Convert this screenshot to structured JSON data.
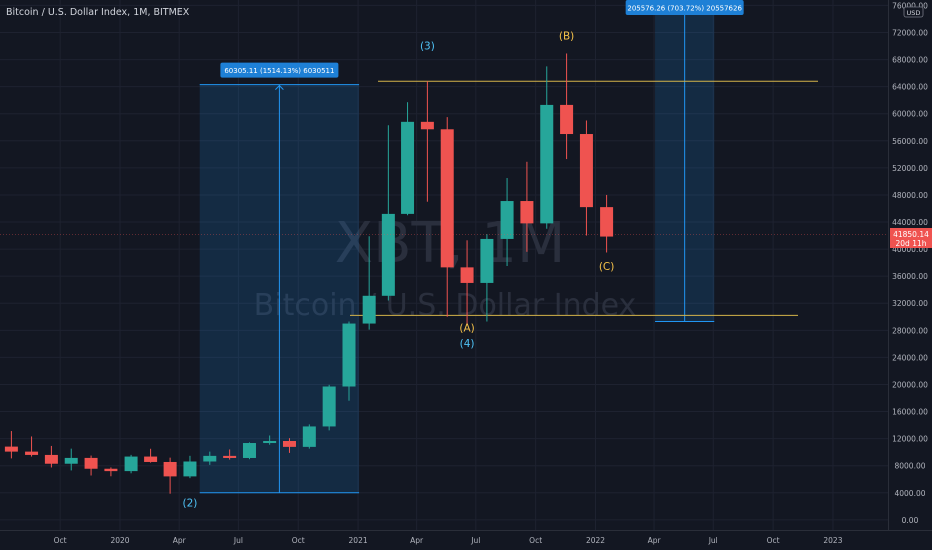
{
  "header": {
    "symbol_title": "Bitcoin / U.S. Dollar Index, 1M, BITMEX"
  },
  "watermark": {
    "ticker": "XBT, 1M",
    "description": "Bitcoin / U.S. Dollar Index"
  },
  "currency_badge": "USD",
  "price_axis": {
    "ticks": [
      "76000.00",
      "72000.00",
      "68000.00",
      "64000.00",
      "60000.00",
      "56000.00",
      "52000.00",
      "48000.00",
      "44000.00",
      "40000.00",
      "36000.00",
      "32000.00",
      "28000.00",
      "24000.00",
      "20000.00",
      "16000.00",
      "12000.00",
      "8000.00",
      "4000.00",
      "0.00"
    ],
    "current_price": "41850.14",
    "countdown": "20d 11h"
  },
  "time_axis": {
    "ticks": [
      "Oct",
      "2020",
      "Apr",
      "Jul",
      "Oct",
      "2021",
      "Apr",
      "Jul",
      "Oct",
      "2022",
      "Apr",
      "Jul",
      "Oct",
      "2023"
    ]
  },
  "measure_boxes": [
    {
      "label": "60305.11 (1514.13%) 6030511"
    },
    {
      "label": "205576.26 (703.72%) 20557626"
    }
  ],
  "wave_labels": [
    {
      "text": "(2)"
    },
    {
      "text": "(3)"
    },
    {
      "text": "(4)"
    },
    {
      "text": "(A)"
    },
    {
      "text": "(B)"
    },
    {
      "text": "(C)"
    }
  ],
  "colors": {
    "background": "#131722",
    "up": "#26a69a",
    "down": "#ef5350",
    "measure": "#2196f3",
    "wave_blue": "#4fc3f7",
    "wave_orange": "#f5c24a",
    "hline": "#d4b44a"
  },
  "chart_data": {
    "type": "candlestick",
    "timeframe": "1M",
    "series": [
      {
        "date": "2019-06",
        "open": 8550,
        "high": 13880,
        "low": 7450,
        "close": 10820
      },
      {
        "date": "2019-07",
        "open": 10820,
        "high": 13120,
        "low": 9080,
        "close": 10080
      },
      {
        "date": "2019-08",
        "open": 10080,
        "high": 12320,
        "low": 9350,
        "close": 9590
      },
      {
        "date": "2019-09",
        "open": 9590,
        "high": 10920,
        "low": 7740,
        "close": 8290
      },
      {
        "date": "2019-10",
        "open": 8290,
        "high": 10520,
        "low": 7300,
        "close": 9150
      },
      {
        "date": "2019-11",
        "open": 9150,
        "high": 9500,
        "low": 6550,
        "close": 7550
      },
      {
        "date": "2019-12",
        "open": 7550,
        "high": 7750,
        "low": 6440,
        "close": 7200
      },
      {
        "date": "2020-01",
        "open": 7200,
        "high": 9600,
        "low": 6880,
        "close": 9350
      },
      {
        "date": "2020-02",
        "open": 9350,
        "high": 10500,
        "low": 8450,
        "close": 8550
      },
      {
        "date": "2020-03",
        "open": 8550,
        "high": 9190,
        "low": 3860,
        "close": 6420
      },
      {
        "date": "2020-04",
        "open": 6420,
        "high": 9460,
        "low": 6160,
        "close": 8620
      },
      {
        "date": "2020-05",
        "open": 8620,
        "high": 10080,
        "low": 8120,
        "close": 9450
      },
      {
        "date": "2020-06",
        "open": 9450,
        "high": 10400,
        "low": 8900,
        "close": 9140
      },
      {
        "date": "2020-07",
        "open": 9140,
        "high": 11450,
        "low": 8960,
        "close": 11350
      },
      {
        "date": "2020-08",
        "open": 11350,
        "high": 12460,
        "low": 11100,
        "close": 11650
      },
      {
        "date": "2020-09",
        "open": 11650,
        "high": 12070,
        "low": 9890,
        "close": 10780
      },
      {
        "date": "2020-10",
        "open": 10780,
        "high": 14100,
        "low": 10520,
        "close": 13800
      },
      {
        "date": "2020-11",
        "open": 13800,
        "high": 19950,
        "low": 13220,
        "close": 19700
      },
      {
        "date": "2020-12",
        "open": 19700,
        "high": 29300,
        "low": 17600,
        "close": 29000
      },
      {
        "date": "2021-01",
        "open": 29000,
        "high": 41900,
        "low": 28100,
        "close": 33100
      },
      {
        "date": "2021-02",
        "open": 33100,
        "high": 58300,
        "low": 32400,
        "close": 45200
      },
      {
        "date": "2021-03",
        "open": 45200,
        "high": 61700,
        "low": 45000,
        "close": 58800
      },
      {
        "date": "2021-04",
        "open": 58800,
        "high": 64800,
        "low": 47000,
        "close": 57700
      },
      {
        "date": "2021-05",
        "open": 57700,
        "high": 59500,
        "low": 30000,
        "close": 37300
      },
      {
        "date": "2021-06",
        "open": 37300,
        "high": 41300,
        "low": 28800,
        "close": 35000
      },
      {
        "date": "2021-07",
        "open": 35000,
        "high": 42200,
        "low": 29300,
        "close": 41500
      },
      {
        "date": "2021-08",
        "open": 41500,
        "high": 50500,
        "low": 37500,
        "close": 47100
      },
      {
        "date": "2021-09",
        "open": 47100,
        "high": 52900,
        "low": 39600,
        "close": 43800
      },
      {
        "date": "2021-10",
        "open": 43800,
        "high": 67000,
        "low": 43000,
        "close": 61300
      },
      {
        "date": "2021-11",
        "open": 61300,
        "high": 68900,
        "low": 53300,
        "close": 57000
      },
      {
        "date": "2021-12",
        "open": 57000,
        "high": 59000,
        "low": 42000,
        "close": 46200
      },
      {
        "date": "2022-01",
        "open": 46200,
        "high": 48000,
        "low": 39500,
        "close": 41850
      }
    ],
    "yrange": [
      -1500,
      76800
    ],
    "price_axis_position": "right",
    "horizontal_lines": [
      64800,
      30200
    ],
    "measure_ranges": [
      {
        "start": "2020-05",
        "end": "2020-12",
        "from": 4000,
        "to": 64300,
        "change": "60305.11 (1514.13%)"
      },
      {
        "start": "2022-04",
        "end": "2022-06",
        "from": 29300,
        "to": 234800,
        "change": "205576.26 (703.72%)"
      }
    ],
    "annotations": [
      {
        "text": "(2)",
        "date": "2020-04",
        "price": 2000
      },
      {
        "text": "(3)",
        "date": "2021-04",
        "price": 69500
      },
      {
        "text": "(4)",
        "date": "2021-06",
        "price": 25500
      },
      {
        "text": "(A)",
        "date": "2021-06",
        "price": 27800
      },
      {
        "text": "(B)",
        "date": "2021-11",
        "price": 71000
      },
      {
        "text": "(C)",
        "date": "2022-01",
        "price": 36900
      }
    ]
  }
}
